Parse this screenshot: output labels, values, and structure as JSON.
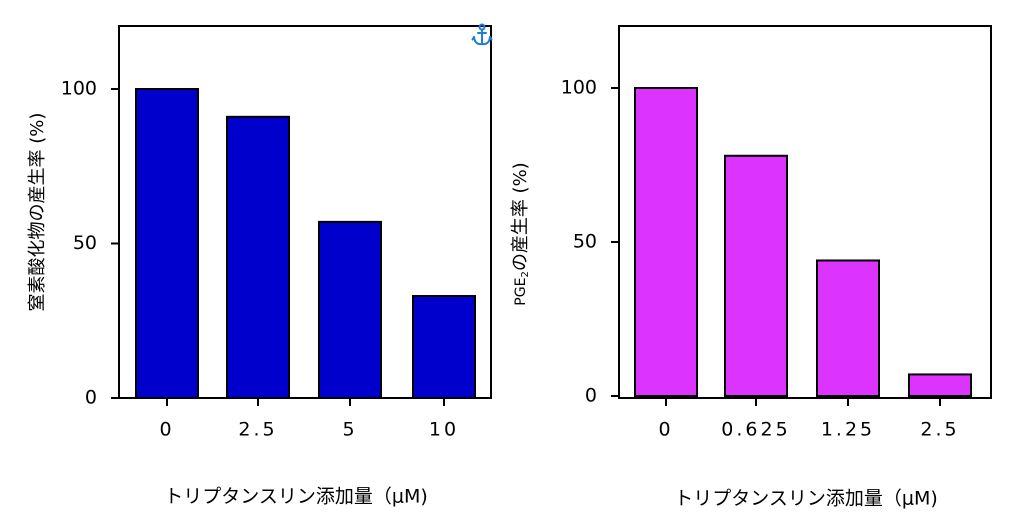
{
  "icons": {
    "corner_icon": "anchor-icon",
    "corner_icon_color": "#1f7fd6"
  },
  "chart_data": [
    {
      "type": "bar",
      "title": "",
      "xlabel": "トリプタンスリン添加量（μM)",
      "ylabel": "窒素酸化物の産生率 (%)",
      "categories": [
        "0",
        "2.5",
        "5",
        "10"
      ],
      "values": [
        100,
        91,
        57,
        33
      ],
      "ylim": [
        0,
        120
      ],
      "yticks": [
        "0",
        "50",
        "100"
      ],
      "bar_color": "#0000cc",
      "grid": false,
      "legend": "none"
    },
    {
      "type": "bar",
      "title": "",
      "xlabel": "トリプタンスリン添加量（μM)",
      "ylabel_prefix": "PGE",
      "ylabel_sub": "2",
      "ylabel_suffix": "の産生率 (%)",
      "categories": [
        "0",
        "0.625",
        "1.25",
        "2.5"
      ],
      "values": [
        100,
        78,
        44,
        7
      ],
      "ylim": [
        0,
        120
      ],
      "yticks": [
        "0",
        "50",
        "100"
      ],
      "bar_color": "#dd33ff",
      "grid": false,
      "legend": "none"
    }
  ]
}
